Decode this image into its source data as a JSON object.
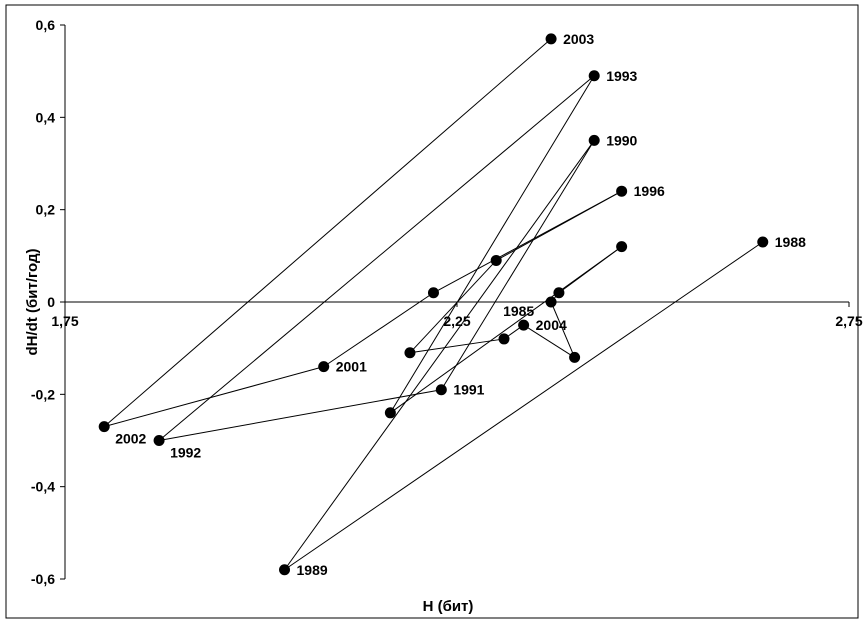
{
  "chart_data": {
    "type": "scatter",
    "connected": true,
    "xlabel": "H (бит)",
    "ylabel": "dH/dt (бит/год)",
    "xlim": [
      1.75,
      2.75
    ],
    "ylim": [
      -0.6,
      0.6
    ],
    "x_ticks": [
      1.75,
      2.25,
      2.75
    ],
    "x_tick_labels": [
      "1,75",
      "2,25",
      "2,75"
    ],
    "y_ticks": [
      0.6,
      0.4,
      0.2,
      0,
      -0.2,
      -0.4,
      -0.6
    ],
    "y_tick_labels": [
      "0,6",
      "0,4",
      "0,2",
      "0",
      "-0,2",
      "-0,4",
      "-0,6"
    ],
    "grid": false,
    "legend": "none",
    "marker_color": "#000000",
    "line_color": "#000000",
    "points": [
      {
        "x": 2.64,
        "y": 0.13,
        "label": "1988"
      },
      {
        "x": 2.03,
        "y": -0.58,
        "label": "1989"
      },
      {
        "x": 2.425,
        "y": 0.35,
        "label": "1990"
      },
      {
        "x": 2.23,
        "y": -0.19,
        "label": "1991"
      },
      {
        "x": 1.87,
        "y": -0.3,
        "label": "1992"
      },
      {
        "x": 2.425,
        "y": 0.49,
        "label": "1993"
      },
      {
        "x": 2.165,
        "y": -0.24,
        "label": ""
      },
      {
        "x": 2.46,
        "y": 0.12,
        "label": ""
      },
      {
        "x": 2.38,
        "y": 0.02,
        "label": ""
      },
      {
        "x": 2.37,
        "y": 0.0,
        "label": "1985"
      },
      {
        "x": 2.4,
        "y": -0.12,
        "label": ""
      },
      {
        "x": 2.335,
        "y": -0.05,
        "label": "2004"
      },
      {
        "x": 2.31,
        "y": -0.08,
        "label": ""
      },
      {
        "x": 2.19,
        "y": -0.11,
        "label": ""
      },
      {
        "x": 2.3,
        "y": 0.09,
        "label": ""
      },
      {
        "x": 2.46,
        "y": 0.24,
        "label": "1996"
      },
      {
        "x": 2.22,
        "y": 0.02,
        "label": ""
      },
      {
        "x": 2.08,
        "y": -0.14,
        "label": "2001"
      },
      {
        "x": 1.8,
        "y": -0.27,
        "label": "2002"
      },
      {
        "x": 2.37,
        "y": 0.57,
        "label": "2003"
      }
    ]
  }
}
